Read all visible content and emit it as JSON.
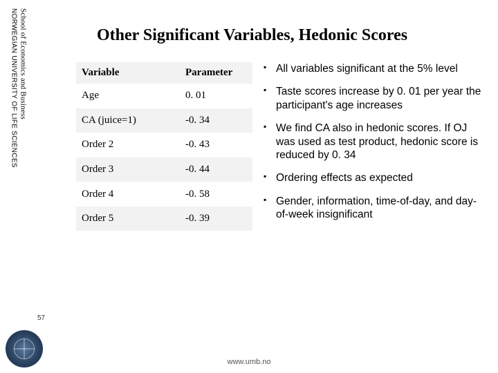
{
  "sidebar": {
    "school": "School of Economics and Business",
    "university": "NORWEGIAN UNIVERSITY OF LIFE SCIENCES"
  },
  "title": "Other Significant Variables, Hedonic Scores",
  "table": {
    "headers": {
      "variable": "Variable",
      "parameter": "Parameter"
    },
    "rows": [
      {
        "variable": "Age",
        "parameter": " 0. 01"
      },
      {
        "variable": "CA (juice=1)",
        "parameter": "-0. 34"
      },
      {
        "variable": "Order 2",
        "parameter": "-0. 43"
      },
      {
        "variable": "Order 3",
        "parameter": "-0. 44"
      },
      {
        "variable": "Order 4",
        "parameter": "-0. 58"
      },
      {
        "variable": "Order 5",
        "parameter": "-0. 39"
      }
    ]
  },
  "bullets": [
    "All variables significant at the 5% level",
    "Taste scores increase by 0. 01 per year the participant's age increases",
    "We find CA also in hedonic scores. If OJ was used as test product, hedonic score is reduced by 0. 34",
    "Ordering effects as expected",
    "Gender, information, time-of-day, and day-of-week insignificant"
  ],
  "page_number": "57",
  "footer_url": "www.umb.no",
  "colors": {
    "row_alt_bg": "#f2f2f2",
    "logo_gradient_inner": "#5a7aa0",
    "logo_gradient_mid": "#2b4260",
    "logo_gradient_outer": "#172a40"
  }
}
